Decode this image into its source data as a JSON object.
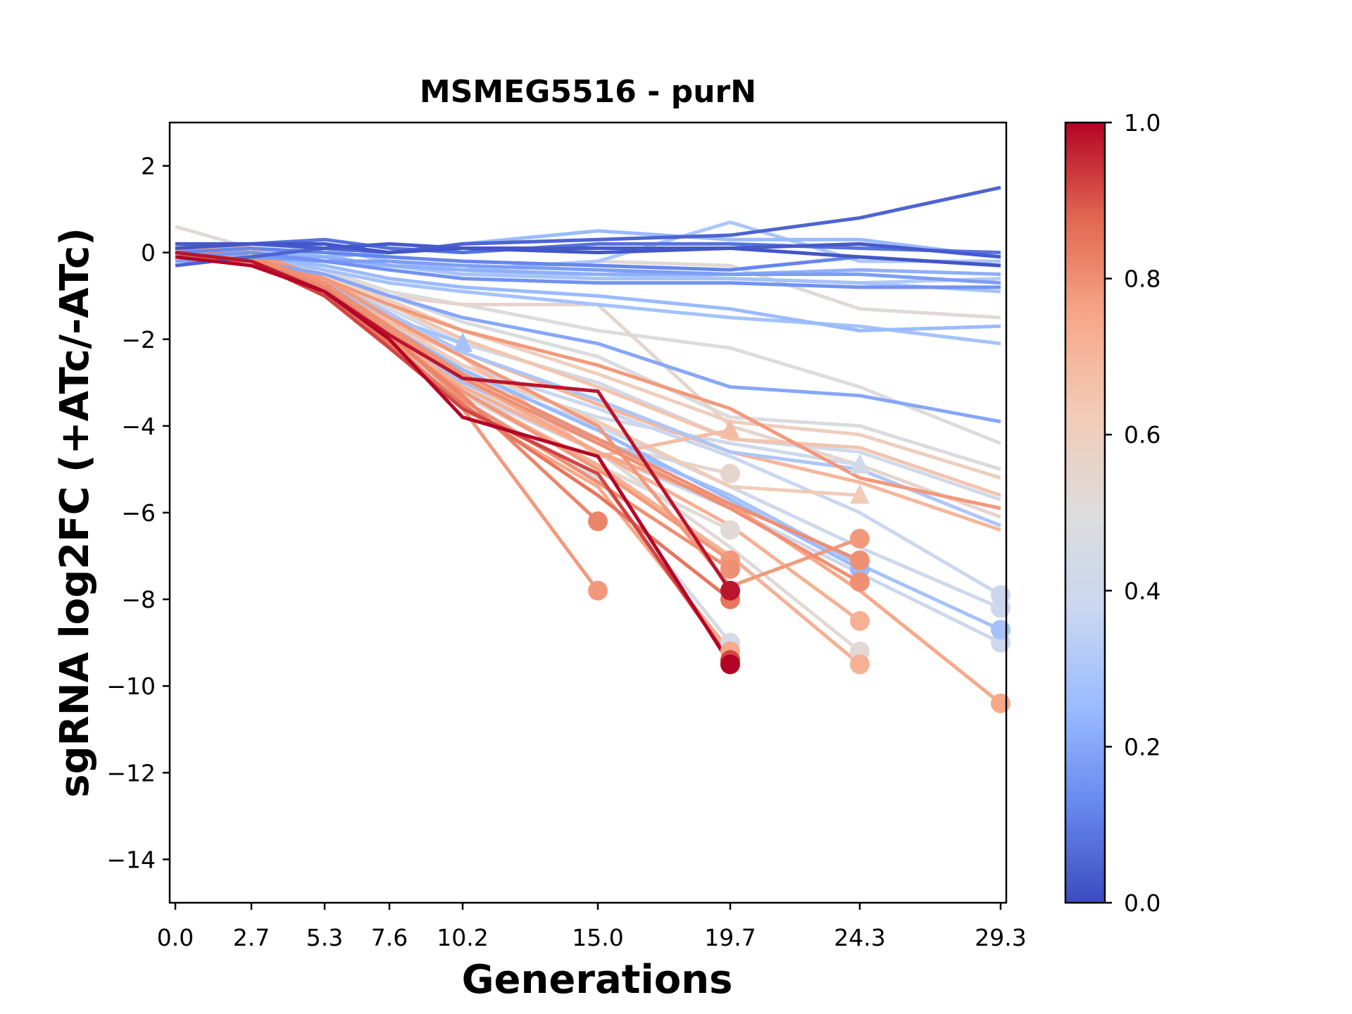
{
  "chart_data": {
    "type": "line",
    "title": "MSMEG5516 - purN",
    "xlabel": "Generations",
    "ylabel": "sgRNA log2FC (+ATc/-ATc)",
    "xlim": [
      -0.2,
      29.5
    ],
    "ylim": [
      -15,
      3
    ],
    "x_ticks": [
      0.0,
      2.7,
      5.3,
      7.6,
      10.2,
      15.0,
      19.7,
      24.3,
      29.3
    ],
    "x_tick_labels": [
      "0.0",
      "2.7",
      "5.3",
      "7.6",
      "10.2",
      "15.0",
      "19.7",
      "24.3",
      "29.3"
    ],
    "y_ticks": [
      2,
      0,
      -2,
      -4,
      -6,
      -8,
      -10,
      -12,
      -14
    ],
    "y_tick_labels": [
      "2",
      "0",
      "−2",
      "−4",
      "−6",
      "−8",
      "−10",
      "−12",
      "−14"
    ],
    "grid": false,
    "colorbar": {
      "colormap": "coolwarm",
      "range": [
        0.0,
        1.0
      ],
      "ticks": [
        0.0,
        0.2,
        0.4,
        0.6,
        0.8,
        1.0
      ],
      "tick_labels": [
        "0.0",
        "0.2",
        "0.4",
        "0.6",
        "0.8",
        "1.0"
      ],
      "stops": [
        "#3b4cc0",
        "#6788ee",
        "#9abbff",
        "#c9d7f0",
        "#dddcdc",
        "#f2cbb7",
        "#f7a889",
        "#e26952",
        "#b40426"
      ]
    },
    "x": [
      0.0,
      2.7,
      5.3,
      7.6,
      10.2,
      15.0,
      19.7,
      24.3,
      29.3
    ],
    "series": [
      {
        "c": 0.05,
        "values": [
          -0.3,
          -0.1,
          0.1,
          0.0,
          0.2,
          0.3,
          0.4,
          0.8,
          1.5
        ],
        "end": "none"
      },
      {
        "c": 0.08,
        "values": [
          0.1,
          0.2,
          0.3,
          0.1,
          0.0,
          0.2,
          0.2,
          0.1,
          0.0
        ],
        "end": "none"
      },
      {
        "c": 0.03,
        "values": [
          0.2,
          0.2,
          0.1,
          0.2,
          0.1,
          0.1,
          0.1,
          0.2,
          -0.1
        ],
        "end": "none"
      },
      {
        "c": 0.12,
        "values": [
          0.0,
          0.1,
          0.0,
          -0.1,
          -0.2,
          -0.3,
          -0.4,
          -0.1,
          -0.3
        ],
        "end": "none"
      },
      {
        "c": 0.02,
        "values": [
          0.1,
          0.2,
          0.2,
          0.0,
          0.1,
          0.0,
          0.1,
          -0.1,
          -0.3
        ],
        "end": "none"
      },
      {
        "c": 0.25,
        "values": [
          0.0,
          0.1,
          -0.1,
          0.0,
          0.2,
          0.5,
          0.3,
          0.3,
          -0.1
        ],
        "end": "none"
      },
      {
        "c": 0.3,
        "values": [
          0.2,
          0.0,
          0.1,
          -0.2,
          -0.4,
          -0.2,
          0.7,
          -0.2,
          -0.2
        ],
        "end": "none"
      },
      {
        "c": 0.18,
        "values": [
          -0.2,
          -0.1,
          -0.2,
          -0.2,
          -0.3,
          -0.4,
          -0.5,
          -0.5,
          -0.7
        ],
        "end": "none"
      },
      {
        "c": 0.22,
        "values": [
          0.0,
          -0.1,
          -0.1,
          -0.3,
          -0.4,
          -0.5,
          -0.5,
          -0.4,
          -0.5
        ],
        "end": "none"
      },
      {
        "c": 0.28,
        "values": [
          0.1,
          0.0,
          -0.2,
          -0.3,
          -0.5,
          -0.6,
          -0.6,
          -0.7,
          -0.9
        ],
        "end": "none"
      },
      {
        "c": 0.15,
        "values": [
          -0.1,
          0.0,
          -0.2,
          -0.4,
          -0.6,
          -0.7,
          -0.7,
          -0.8,
          -0.8
        ],
        "end": "none"
      },
      {
        "c": 0.32,
        "values": [
          0.1,
          0.0,
          -0.1,
          -0.3,
          -0.5,
          -0.5,
          -0.6,
          -0.7,
          -0.6
        ],
        "end": "none"
      },
      {
        "c": 0.52,
        "values": [
          0.6,
          0.1,
          -0.1,
          -0.3,
          -0.5,
          -0.2,
          -0.3,
          -1.3,
          -1.5
        ],
        "end": "none"
      },
      {
        "c": 0.25,
        "values": [
          0.0,
          -0.1,
          -0.3,
          -0.6,
          -0.8,
          -1.0,
          -1.3,
          -1.8,
          -1.7
        ],
        "end": "none"
      },
      {
        "c": 0.28,
        "values": [
          0.1,
          -0.1,
          -0.4,
          -0.7,
          -0.9,
          -1.2,
          -1.5,
          -1.7,
          -2.1
        ],
        "end": "none"
      },
      {
        "c": 0.5,
        "values": [
          0.2,
          0.0,
          -0.4,
          -0.9,
          -1.2,
          -1.8,
          -2.2,
          -3.1,
          -4.4
        ],
        "end": "none"
      },
      {
        "c": 0.2,
        "values": [
          0.0,
          -0.2,
          -0.5,
          -1.0,
          -1.5,
          -2.1,
          -3.1,
          -3.3,
          -3.9
        ],
        "end": "none"
      },
      {
        "c": 0.55,
        "values": [
          0.1,
          -0.1,
          -0.5,
          -1.0,
          -1.2,
          -1.2,
          -4.0,
          -4.9,
          -6.1
        ],
        "end": "none"
      },
      {
        "c": 0.48,
        "values": [
          0.2,
          0.0,
          -0.4,
          -1.0,
          -1.6,
          -2.4,
          -3.8,
          -4.0,
          -5.0
        ],
        "end": "none"
      },
      {
        "c": 0.6,
        "values": [
          0.1,
          -0.1,
          -0.5,
          -1.1,
          -1.8,
          -2.8,
          -3.9,
          -4.2,
          -5.2
        ],
        "end": "none"
      },
      {
        "c": 0.65,
        "values": [
          0.0,
          -0.1,
          -0.6,
          -1.2,
          -2.0,
          -3.1,
          -4.3,
          -4.5,
          -5.6
        ],
        "end": "none"
      },
      {
        "c": 0.42,
        "values": [
          0.1,
          -0.1,
          -0.6,
          -1.3,
          -2.1,
          -3.0,
          -4.3,
          -4.6,
          -5.7
        ],
        "end": "none"
      },
      {
        "c": 0.3,
        "values": [
          0.0,
          -0.2,
          -0.7,
          -1.4,
          -2.3,
          -3.4,
          -4.6,
          -5.0,
          -6.3
        ],
        "end": "none"
      },
      {
        "c": 0.7,
        "values": [
          0.1,
          0.0,
          -0.6,
          -1.4,
          -2.3,
          -3.5,
          -4.6,
          -5.3,
          -6.4
        ],
        "end": "none"
      },
      {
        "c": 0.78,
        "values": [
          0.0,
          -0.1,
          -0.6,
          -1.2,
          -1.8,
          -2.6,
          -3.6,
          -5.2,
          -5.9
        ],
        "end": "none"
      },
      {
        "c": 0.38,
        "values": [
          0.1,
          -0.1,
          -0.8,
          -1.6,
          -2.6,
          -3.6,
          -4.7,
          -6.0,
          -7.9
        ],
        "end": "circle"
      },
      {
        "c": 0.4,
        "values": [
          0.0,
          -0.2,
          -0.8,
          -1.7,
          -2.8,
          -4.0,
          -5.4,
          -6.8,
          -8.2
        ],
        "end": "circle"
      },
      {
        "c": 0.28,
        "values": [
          0.0,
          -0.2,
          -0.9,
          -1.8,
          -3.0,
          -4.3,
          -5.6,
          -7.2,
          -8.7
        ],
        "end": "circle"
      },
      {
        "c": 0.4,
        "values": [
          0.1,
          -0.1,
          -0.9,
          -1.9,
          -3.2,
          -4.6,
          -5.9,
          -7.4,
          -9.0
        ],
        "end": "circle"
      },
      {
        "c": 0.75,
        "values": [
          0.1,
          0.1,
          -0.7,
          -1.7,
          -2.9,
          -4.6,
          -5.8,
          -7.8,
          -10.4
        ],
        "end": "circle"
      },
      {
        "c": 0.28,
        "values": [
          0.1,
          -0.1,
          -0.7,
          -1.5,
          -2.1,
          "null",
          "null",
          "null",
          "null"
        ],
        "end": "triangle"
      },
      {
        "c": 0.68,
        "values": [
          0.1,
          -0.1,
          -0.7,
          -1.6,
          -2.4,
          -4.7,
          -4.1,
          "null",
          "null"
        ],
        "end": "triangle"
      },
      {
        "c": 0.42,
        "values": [
          0.0,
          -0.2,
          -0.8,
          -1.7,
          -2.8,
          -3.8,
          -4.4,
          -4.9,
          "null"
        ],
        "end": "triangle"
      },
      {
        "c": 0.62,
        "values": [
          0.1,
          -0.1,
          -0.7,
          -1.6,
          -2.6,
          -3.9,
          -5.4,
          -5.6,
          "null"
        ],
        "end": "triangle"
      },
      {
        "c": 0.82,
        "values": [
          0.0,
          -0.2,
          -0.8,
          -1.9,
          -3.3,
          -6.2,
          "null",
          "null",
          "null"
        ],
        "end": "circle"
      },
      {
        "c": 0.78,
        "values": [
          0.1,
          -0.1,
          -0.9,
          -2.0,
          -3.6,
          -7.8,
          "null",
          "null",
          "null"
        ],
        "end": "circle"
      },
      {
        "c": 0.55,
        "values": [
          0.1,
          -0.1,
          -0.8,
          -1.8,
          -3.0,
          -4.4,
          -5.1,
          "null",
          "null"
        ],
        "end": "circle"
      },
      {
        "c": 0.52,
        "values": [
          0.0,
          -0.2,
          -0.9,
          -2.0,
          -3.3,
          -4.9,
          -6.4,
          "null",
          "null"
        ],
        "end": "circle"
      },
      {
        "c": 0.78,
        "values": [
          0.0,
          -0.2,
          -0.9,
          -2.0,
          -3.2,
          -5.0,
          -7.1,
          "null",
          "null"
        ],
        "end": "circle"
      },
      {
        "c": 0.8,
        "values": [
          0.1,
          -0.1,
          -0.8,
          -1.9,
          -3.4,
          -5.3,
          -7.3,
          "null",
          "null"
        ],
        "end": "circle"
      },
      {
        "c": 0.98,
        "values": [
          0.0,
          -0.2,
          -0.9,
          -1.9,
          -2.9,
          -3.2,
          -7.8,
          "null",
          "null"
        ],
        "end": "circle"
      },
      {
        "c": 0.85,
        "values": [
          -0.1,
          -0.2,
          -1.0,
          -2.1,
          -3.5,
          -5.6,
          -8.0,
          "null",
          "null"
        ],
        "end": "circle"
      },
      {
        "c": 0.45,
        "values": [
          0.1,
          -0.1,
          -0.9,
          -2.0,
          -3.4,
          -5.2,
          -9.0,
          "null",
          "null"
        ],
        "end": "circle"
      },
      {
        "c": 0.75,
        "values": [
          0.0,
          -0.2,
          -1.0,
          -2.2,
          -3.6,
          -5.4,
          -9.2,
          "null",
          "null"
        ],
        "end": "circle"
      },
      {
        "c": 0.92,
        "values": [
          0.0,
          -0.2,
          -1.0,
          -2.2,
          -3.6,
          -5.1,
          -9.4,
          "null",
          "null"
        ],
        "end": "circle"
      },
      {
        "c": 1.0,
        "values": [
          -0.1,
          -0.3,
          -0.9,
          -2.0,
          -3.8,
          -4.7,
          -9.5,
          "null",
          "null"
        ],
        "end": "circle"
      },
      {
        "c": 0.78,
        "values": [
          0.1,
          0.0,
          -0.6,
          -1.5,
          -2.4,
          -4.0,
          -7.7,
          -6.6,
          "null"
        ],
        "end": "circle"
      },
      {
        "c": 0.8,
        "values": [
          0.0,
          -0.1,
          -0.7,
          -1.7,
          -2.8,
          -4.3,
          -5.8,
          -7.1,
          "null"
        ],
        "end": "circle"
      },
      {
        "c": 0.25,
        "values": [
          0.1,
          -0.1,
          -0.8,
          -1.7,
          -2.7,
          -4.1,
          -5.7,
          -7.3,
          "null"
        ],
        "end": "circle"
      },
      {
        "c": 0.8,
        "values": [
          0.0,
          -0.1,
          -0.8,
          -1.8,
          -2.9,
          -4.4,
          -5.9,
          -7.6,
          "null"
        ],
        "end": "circle"
      },
      {
        "c": 0.72,
        "values": [
          0.0,
          -0.2,
          -0.9,
          -1.9,
          -3.1,
          -4.6,
          -6.3,
          -8.5,
          "null"
        ],
        "end": "circle"
      },
      {
        "c": 0.52,
        "values": [
          0.1,
          -0.1,
          -0.8,
          -1.8,
          -3.0,
          -4.6,
          -6.8,
          -9.2,
          "null"
        ],
        "end": "circle"
      },
      {
        "c": 0.72,
        "values": [
          0.0,
          -0.2,
          -0.9,
          -2.0,
          -3.2,
          -4.9,
          -7.0,
          -9.5,
          "null"
        ],
        "end": "circle"
      }
    ]
  }
}
